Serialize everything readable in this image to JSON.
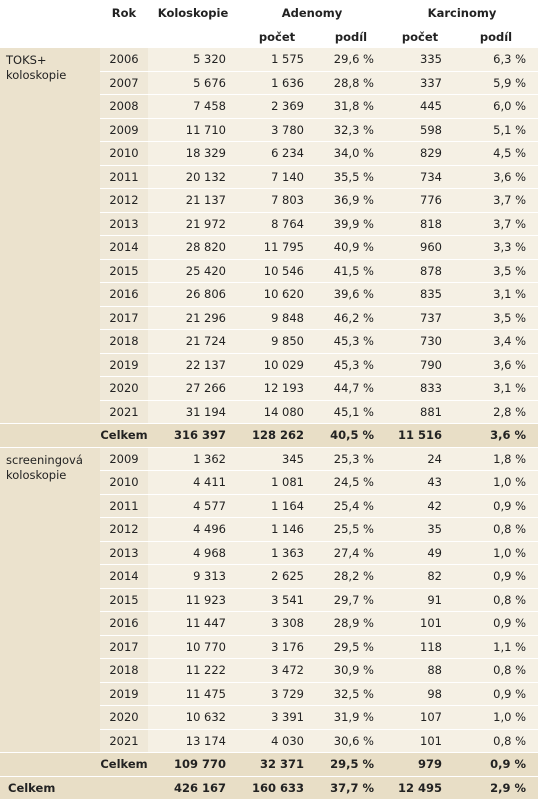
{
  "header": {
    "rok": "Rok",
    "koloskopie": "Koloskopie",
    "adenomy": "Adenomy",
    "karcinomy": "Karcinomy",
    "subheaders": [
      "počet",
      "podíl",
      "počet",
      "podíl"
    ]
  },
  "groups": [
    {
      "label": "TOKS+ koloskopie",
      "rows": [
        [
          "2006",
          "5 320",
          "1 575",
          "29,6 %",
          "335",
          "6,3 %"
        ],
        [
          "2007",
          "5 676",
          "1 636",
          "28,8 %",
          "337",
          "5,9 %"
        ],
        [
          "2008",
          "7 458",
          "2 369",
          "31,8 %",
          "445",
          "6,0 %"
        ],
        [
          "2009",
          "11 710",
          "3 780",
          "32,3 %",
          "598",
          "5,1 %"
        ],
        [
          "2010",
          "18 329",
          "6 234",
          "34,0 %",
          "829",
          "4,5 %"
        ],
        [
          "2011",
          "20 132",
          "7 140",
          "35,5 %",
          "734",
          "3,6 %"
        ],
        [
          "2012",
          "21 137",
          "7 803",
          "36,9 %",
          "776",
          "3,7 %"
        ],
        [
          "2013",
          "21 972",
          "8 764",
          "39,9 %",
          "818",
          "3,7 %"
        ],
        [
          "2014",
          "28 820",
          "11 795",
          "40,9 %",
          "960",
          "3,3 %"
        ],
        [
          "2015",
          "25 420",
          "10 546",
          "41,5 %",
          "878",
          "3,5 %"
        ],
        [
          "2016",
          "26 806",
          "10 620",
          "39,6 %",
          "835",
          "3,1 %"
        ],
        [
          "2017",
          "21 296",
          "9 848",
          "46,2 %",
          "737",
          "3,5 %"
        ],
        [
          "2018",
          "21 724",
          "9 850",
          "45,3 %",
          "730",
          "3,4 %"
        ],
        [
          "2019",
          "22 137",
          "10 029",
          "45,3 %",
          "790",
          "3,6 %"
        ],
        [
          "2020",
          "27 266",
          "12 193",
          "44,7 %",
          "833",
          "3,1 %"
        ],
        [
          "2021",
          "31 194",
          "14 080",
          "45,1 %",
          "881",
          "2,8 %"
        ]
      ],
      "total": [
        "Celkem",
        "316 397",
        "128 262",
        "40,5 %",
        "11 516",
        "3,6 %"
      ]
    },
    {
      "label": "screeningová koloskopie",
      "rows": [
        [
          "2009",
          "1 362",
          "345",
          "25,3 %",
          "24",
          "1,8 %"
        ],
        [
          "2010",
          "4 411",
          "1 081",
          "24,5 %",
          "43",
          "1,0 %"
        ],
        [
          "2011",
          "4 577",
          "1 164",
          "25,4 %",
          "42",
          "0,9 %"
        ],
        [
          "2012",
          "4 496",
          "1 146",
          "25,5 %",
          "35",
          "0,8 %"
        ],
        [
          "2013",
          "4 968",
          "1 363",
          "27,4 %",
          "49",
          "1,0 %"
        ],
        [
          "2014",
          "9 313",
          "2 625",
          "28,2 %",
          "82",
          "0,9 %"
        ],
        [
          "2015",
          "11 923",
          "3 541",
          "29,7 %",
          "91",
          "0,8 %"
        ],
        [
          "2016",
          "11 447",
          "3 308",
          "28,9 %",
          "101",
          "0,9 %"
        ],
        [
          "2017",
          "10 770",
          "3 176",
          "29,5 %",
          "118",
          "1,1 %"
        ],
        [
          "2018",
          "11 222",
          "3 472",
          "30,9 %",
          "88",
          "0,8 %"
        ],
        [
          "2019",
          "11 475",
          "3 729",
          "32,5 %",
          "98",
          "0,9 %"
        ],
        [
          "2020",
          "10 632",
          "3 391",
          "31,9 %",
          "107",
          "1,0 %"
        ],
        [
          "2021",
          "13 174",
          "4 030",
          "30,6 %",
          "101",
          "0,8 %"
        ]
      ],
      "total": [
        "Celkem",
        "109 770",
        "32 371",
        "29,5 %",
        "979",
        "0,9 %"
      ]
    }
  ],
  "grand_total": [
    "Celkem",
    "426 167",
    "160 633",
    "37,7 %",
    "12 495",
    "2,9 %"
  ]
}
